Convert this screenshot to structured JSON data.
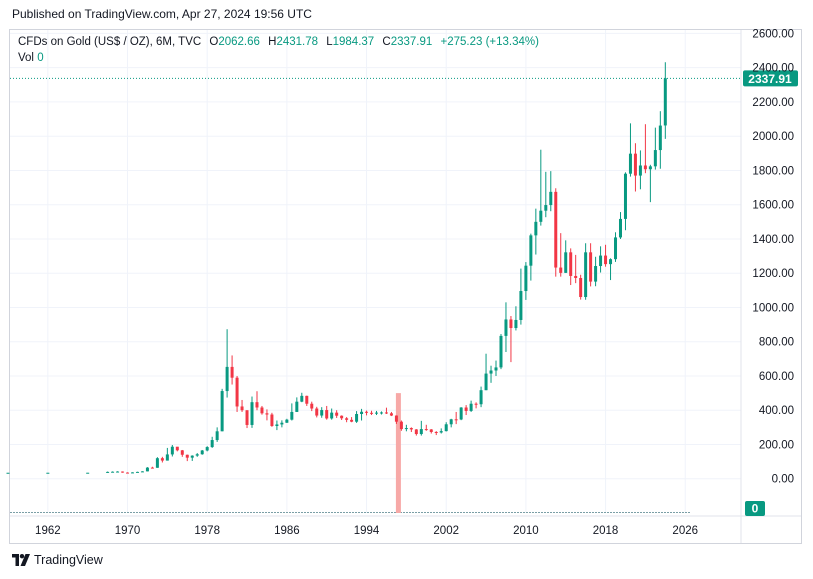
{
  "published": "Published on TradingView.com, Apr 27, 2024 19:56 UTC",
  "footer": {
    "brand": "TradingView",
    "logo_icon": "tradingview-logo-icon"
  },
  "legend": {
    "symbol": "CFDs on Gold (US$ / OZ), 6M, TVC",
    "open_label": "O",
    "open": "2062.66",
    "high_label": "H",
    "high": "2431.78",
    "low_label": "L",
    "low": "1984.37",
    "close_label": "C",
    "close": "2337.91",
    "change": "+275.23 (+13.34%)",
    "vol_label": "Vol",
    "vol": "0"
  },
  "colors": {
    "up": "#089981",
    "down": "#f23645",
    "volume_spike": "#f7a9a7",
    "grid": "#f0f3fa",
    "axis_text": "#131722"
  },
  "chart_data": {
    "type": "candlestick",
    "interval": "6M",
    "y_axis": {
      "ticks": [
        "0.00",
        "200.00",
        "400.00",
        "600.00",
        "800.00",
        "1000.00",
        "1200.00",
        "1400.00",
        "1600.00",
        "1800.00",
        "2000.00",
        "2200.00",
        "2400.00",
        "2600.00"
      ],
      "ylim": [
        -200,
        2620
      ],
      "position": "right"
    },
    "x_axis": {
      "ticks": [
        "1962",
        "1970",
        "1978",
        "1986",
        "1994",
        "2002",
        "2010",
        "2018",
        "2026"
      ],
      "xlim": [
        1958.2,
        2031.6
      ]
    },
    "last_price": {
      "value": 2337.91,
      "label": "2337.91"
    },
    "volume_label": "0",
    "volume_spike": {
      "t": 1997.2,
      "height_value": 500
    },
    "candles": [
      {
        "t": 1958.0,
        "o": 35,
        "h": 35.3,
        "l": 34.9,
        "c": 35
      },
      {
        "t": 1962.0,
        "o": 35,
        "h": 35.3,
        "l": 34.9,
        "c": 35.1
      },
      {
        "t": 1966.0,
        "o": 35.1,
        "h": 35.4,
        "l": 35.0,
        "c": 35.2
      },
      {
        "t": 1968.0,
        "o": 35.2,
        "h": 42,
        "l": 35.0,
        "c": 40
      },
      {
        "t": 1968.5,
        "o": 40,
        "h": 43,
        "l": 38,
        "c": 41
      },
      {
        "t": 1969.0,
        "o": 41,
        "h": 44,
        "l": 39,
        "c": 42
      },
      {
        "t": 1969.5,
        "o": 42,
        "h": 43,
        "l": 35,
        "c": 36
      },
      {
        "t": 1970.0,
        "o": 36,
        "h": 38,
        "l": 34.8,
        "c": 35.5
      },
      {
        "t": 1970.5,
        "o": 35.5,
        "h": 38,
        "l": 35,
        "c": 37
      },
      {
        "t": 1971.0,
        "o": 37,
        "h": 41,
        "l": 37,
        "c": 40
      },
      {
        "t": 1971.5,
        "o": 40,
        "h": 44,
        "l": 40,
        "c": 43
      },
      {
        "t": 1972.0,
        "o": 43,
        "h": 68,
        "l": 43,
        "c": 65
      },
      {
        "t": 1972.5,
        "o": 65,
        "h": 70,
        "l": 60,
        "c": 64
      },
      {
        "t": 1973.0,
        "o": 64,
        "h": 126,
        "l": 64,
        "c": 120
      },
      {
        "t": 1973.5,
        "o": 120,
        "h": 128,
        "l": 95,
        "c": 106
      },
      {
        "t": 1974.0,
        "o": 106,
        "h": 180,
        "l": 106,
        "c": 142
      },
      {
        "t": 1974.5,
        "o": 142,
        "h": 197,
        "l": 130,
        "c": 187
      },
      {
        "t": 1975.0,
        "o": 187,
        "h": 186,
        "l": 160,
        "c": 166
      },
      {
        "t": 1975.5,
        "o": 166,
        "h": 168,
        "l": 128,
        "c": 140
      },
      {
        "t": 1976.0,
        "o": 140,
        "h": 141,
        "l": 103,
        "c": 123
      },
      {
        "t": 1976.5,
        "o": 123,
        "h": 137,
        "l": 104,
        "c": 135
      },
      {
        "t": 1977.0,
        "o": 135,
        "h": 150,
        "l": 128,
        "c": 143
      },
      {
        "t": 1977.5,
        "o": 143,
        "h": 168,
        "l": 140,
        "c": 165
      },
      {
        "t": 1978.0,
        "o": 165,
        "h": 190,
        "l": 160,
        "c": 185
      },
      {
        "t": 1978.5,
        "o": 185,
        "h": 245,
        "l": 180,
        "c": 226
      },
      {
        "t": 1979.0,
        "o": 226,
        "h": 300,
        "l": 215,
        "c": 277
      },
      {
        "t": 1979.5,
        "o": 277,
        "h": 525,
        "l": 277,
        "c": 512
      },
      {
        "t": 1980.0,
        "o": 512,
        "h": 873,
        "l": 474,
        "c": 653
      },
      {
        "t": 1980.5,
        "o": 653,
        "h": 720,
        "l": 550,
        "c": 590
      },
      {
        "t": 1981.0,
        "o": 590,
        "h": 600,
        "l": 390,
        "c": 422
      },
      {
        "t": 1981.5,
        "o": 422,
        "h": 460,
        "l": 390,
        "c": 400
      },
      {
        "t": 1982.0,
        "o": 400,
        "h": 400,
        "l": 296,
        "c": 314
      },
      {
        "t": 1982.5,
        "o": 314,
        "h": 480,
        "l": 297,
        "c": 447
      },
      {
        "t": 1983.0,
        "o": 447,
        "h": 511,
        "l": 400,
        "c": 416
      },
      {
        "t": 1983.5,
        "o": 416,
        "h": 425,
        "l": 374,
        "c": 382
      },
      {
        "t": 1984.0,
        "o": 382,
        "h": 405,
        "l": 341,
        "c": 375
      },
      {
        "t": 1984.5,
        "o": 375,
        "h": 385,
        "l": 303,
        "c": 308
      },
      {
        "t": 1985.0,
        "o": 308,
        "h": 340,
        "l": 284,
        "c": 317
      },
      {
        "t": 1985.5,
        "o": 317,
        "h": 341,
        "l": 300,
        "c": 327
      },
      {
        "t": 1986.0,
        "o": 327,
        "h": 350,
        "l": 326,
        "c": 345
      },
      {
        "t": 1986.5,
        "o": 345,
        "h": 440,
        "l": 340,
        "c": 390
      },
      {
        "t": 1987.0,
        "o": 390,
        "h": 475,
        "l": 390,
        "c": 450
      },
      {
        "t": 1987.5,
        "o": 450,
        "h": 502,
        "l": 447,
        "c": 484
      },
      {
        "t": 1988.0,
        "o": 484,
        "h": 485,
        "l": 425,
        "c": 438
      },
      {
        "t": 1988.5,
        "o": 438,
        "h": 450,
        "l": 395,
        "c": 410
      },
      {
        "t": 1989.0,
        "o": 410,
        "h": 420,
        "l": 358,
        "c": 369
      },
      {
        "t": 1989.5,
        "o": 369,
        "h": 418,
        "l": 356,
        "c": 401
      },
      {
        "t": 1990.0,
        "o": 401,
        "h": 425,
        "l": 345,
        "c": 352
      },
      {
        "t": 1990.5,
        "o": 352,
        "h": 410,
        "l": 345,
        "c": 386
      },
      {
        "t": 1991.0,
        "o": 386,
        "h": 400,
        "l": 355,
        "c": 368
      },
      {
        "t": 1991.5,
        "o": 368,
        "h": 370,
        "l": 343,
        "c": 353
      },
      {
        "t": 1992.0,
        "o": 353,
        "h": 360,
        "l": 330,
        "c": 344
      },
      {
        "t": 1992.5,
        "o": 344,
        "h": 360,
        "l": 330,
        "c": 333
      },
      {
        "t": 1993.0,
        "o": 333,
        "h": 395,
        "l": 326,
        "c": 378
      },
      {
        "t": 1993.5,
        "o": 378,
        "h": 408,
        "l": 340,
        "c": 391
      },
      {
        "t": 1994.0,
        "o": 391,
        "h": 398,
        "l": 370,
        "c": 385
      },
      {
        "t": 1994.5,
        "o": 385,
        "h": 397,
        "l": 372,
        "c": 383
      },
      {
        "t": 1995.0,
        "o": 383,
        "h": 396,
        "l": 372,
        "c": 386
      },
      {
        "t": 1995.5,
        "o": 386,
        "h": 393,
        "l": 375,
        "c": 387
      },
      {
        "t": 1996.0,
        "o": 387,
        "h": 415,
        "l": 378,
        "c": 382
      },
      {
        "t": 1996.5,
        "o": 382,
        "h": 390,
        "l": 366,
        "c": 369
      },
      {
        "t": 1997.0,
        "o": 369,
        "h": 370,
        "l": 320,
        "c": 333
      },
      {
        "t": 1997.5,
        "o": 333,
        "h": 340,
        "l": 280,
        "c": 290
      },
      {
        "t": 1998.0,
        "o": 290,
        "h": 315,
        "l": 277,
        "c": 296
      },
      {
        "t": 1998.5,
        "o": 296,
        "h": 300,
        "l": 273,
        "c": 288
      },
      {
        "t": 1999.0,
        "o": 288,
        "h": 290,
        "l": 252,
        "c": 261
      },
      {
        "t": 1999.5,
        "o": 261,
        "h": 338,
        "l": 252,
        "c": 290
      },
      {
        "t": 2000.0,
        "o": 290,
        "h": 315,
        "l": 280,
        "c": 288
      },
      {
        "t": 2000.5,
        "o": 288,
        "h": 290,
        "l": 264,
        "c": 273
      },
      {
        "t": 2001.0,
        "o": 273,
        "h": 278,
        "l": 255,
        "c": 270
      },
      {
        "t": 2001.5,
        "o": 270,
        "h": 294,
        "l": 264,
        "c": 278
      },
      {
        "t": 2002.0,
        "o": 278,
        "h": 330,
        "l": 276,
        "c": 318
      },
      {
        "t": 2002.5,
        "o": 318,
        "h": 350,
        "l": 300,
        "c": 347
      },
      {
        "t": 2003.0,
        "o": 347,
        "h": 390,
        "l": 319,
        "c": 346
      },
      {
        "t": 2003.5,
        "o": 346,
        "h": 418,
        "l": 342,
        "c": 416
      },
      {
        "t": 2004.0,
        "o": 416,
        "h": 430,
        "l": 372,
        "c": 396
      },
      {
        "t": 2004.5,
        "o": 396,
        "h": 456,
        "l": 390,
        "c": 438
      },
      {
        "t": 2005.0,
        "o": 438,
        "h": 446,
        "l": 411,
        "c": 435
      },
      {
        "t": 2005.5,
        "o": 435,
        "h": 538,
        "l": 418,
        "c": 517
      },
      {
        "t": 2006.0,
        "o": 517,
        "h": 730,
        "l": 517,
        "c": 614
      },
      {
        "t": 2006.5,
        "o": 614,
        "h": 660,
        "l": 560,
        "c": 632
      },
      {
        "t": 2007.0,
        "o": 632,
        "h": 690,
        "l": 600,
        "c": 650
      },
      {
        "t": 2007.5,
        "o": 650,
        "h": 845,
        "l": 640,
        "c": 834
      },
      {
        "t": 2008.0,
        "o": 834,
        "h": 1030,
        "l": 740,
        "c": 930
      },
      {
        "t": 2008.5,
        "o": 930,
        "h": 950,
        "l": 681,
        "c": 880
      },
      {
        "t": 2009.0,
        "o": 880,
        "h": 1007,
        "l": 866,
        "c": 927
      },
      {
        "t": 2009.5,
        "o": 927,
        "h": 1227,
        "l": 900,
        "c": 1096
      },
      {
        "t": 2010.0,
        "o": 1096,
        "h": 1265,
        "l": 1044,
        "c": 1244
      },
      {
        "t": 2010.5,
        "o": 1244,
        "h": 1431,
        "l": 1157,
        "c": 1421
      },
      {
        "t": 2011.0,
        "o": 1421,
        "h": 1577,
        "l": 1309,
        "c": 1500
      },
      {
        "t": 2011.5,
        "o": 1500,
        "h": 1921,
        "l": 1478,
        "c": 1565
      },
      {
        "t": 2012.0,
        "o": 1565,
        "h": 1792,
        "l": 1527,
        "c": 1598
      },
      {
        "t": 2012.5,
        "o": 1598,
        "h": 1796,
        "l": 1562,
        "c": 1675
      },
      {
        "t": 2013.0,
        "o": 1675,
        "h": 1696,
        "l": 1180,
        "c": 1233
      },
      {
        "t": 2013.5,
        "o": 1233,
        "h": 1434,
        "l": 1180,
        "c": 1202
      },
      {
        "t": 2014.0,
        "o": 1202,
        "h": 1392,
        "l": 1202,
        "c": 1322
      },
      {
        "t": 2014.5,
        "o": 1322,
        "h": 1345,
        "l": 1131,
        "c": 1184
      },
      {
        "t": 2015.0,
        "o": 1184,
        "h": 1307,
        "l": 1142,
        "c": 1172
      },
      {
        "t": 2015.5,
        "o": 1172,
        "h": 1191,
        "l": 1046,
        "c": 1061
      },
      {
        "t": 2016.0,
        "o": 1061,
        "h": 1375,
        "l": 1045,
        "c": 1322
      },
      {
        "t": 2016.5,
        "o": 1322,
        "h": 1375,
        "l": 1123,
        "c": 1151
      },
      {
        "t": 2017.0,
        "o": 1151,
        "h": 1296,
        "l": 1124,
        "c": 1242
      },
      {
        "t": 2017.5,
        "o": 1242,
        "h": 1357,
        "l": 1204,
        "c": 1303
      },
      {
        "t": 2018.0,
        "o": 1303,
        "h": 1366,
        "l": 1238,
        "c": 1253
      },
      {
        "t": 2018.5,
        "o": 1253,
        "h": 1287,
        "l": 1160,
        "c": 1282
      },
      {
        "t": 2019.0,
        "o": 1282,
        "h": 1439,
        "l": 1266,
        "c": 1409
      },
      {
        "t": 2019.5,
        "o": 1409,
        "h": 1557,
        "l": 1400,
        "c": 1517
      },
      {
        "t": 2020.0,
        "o": 1517,
        "h": 1789,
        "l": 1451,
        "c": 1781
      },
      {
        "t": 2020.5,
        "o": 1781,
        "h": 2075,
        "l": 1764,
        "c": 1898
      },
      {
        "t": 2021.0,
        "o": 1898,
        "h": 1959,
        "l": 1677,
        "c": 1770
      },
      {
        "t": 2021.5,
        "o": 1770,
        "h": 1917,
        "l": 1690,
        "c": 1829
      },
      {
        "t": 2022.0,
        "o": 1829,
        "h": 2070,
        "l": 1784,
        "c": 1807
      },
      {
        "t": 2022.5,
        "o": 1807,
        "h": 1833,
        "l": 1615,
        "c": 1824
      },
      {
        "t": 2023.0,
        "o": 1824,
        "h": 2050,
        "l": 1805,
        "c": 1919
      },
      {
        "t": 2023.5,
        "o": 1919,
        "h": 2146,
        "l": 1810,
        "c": 2062
      },
      {
        "t": 2024.0,
        "o": 2062.66,
        "h": 2431.78,
        "l": 1984.37,
        "c": 2337.91
      }
    ]
  }
}
